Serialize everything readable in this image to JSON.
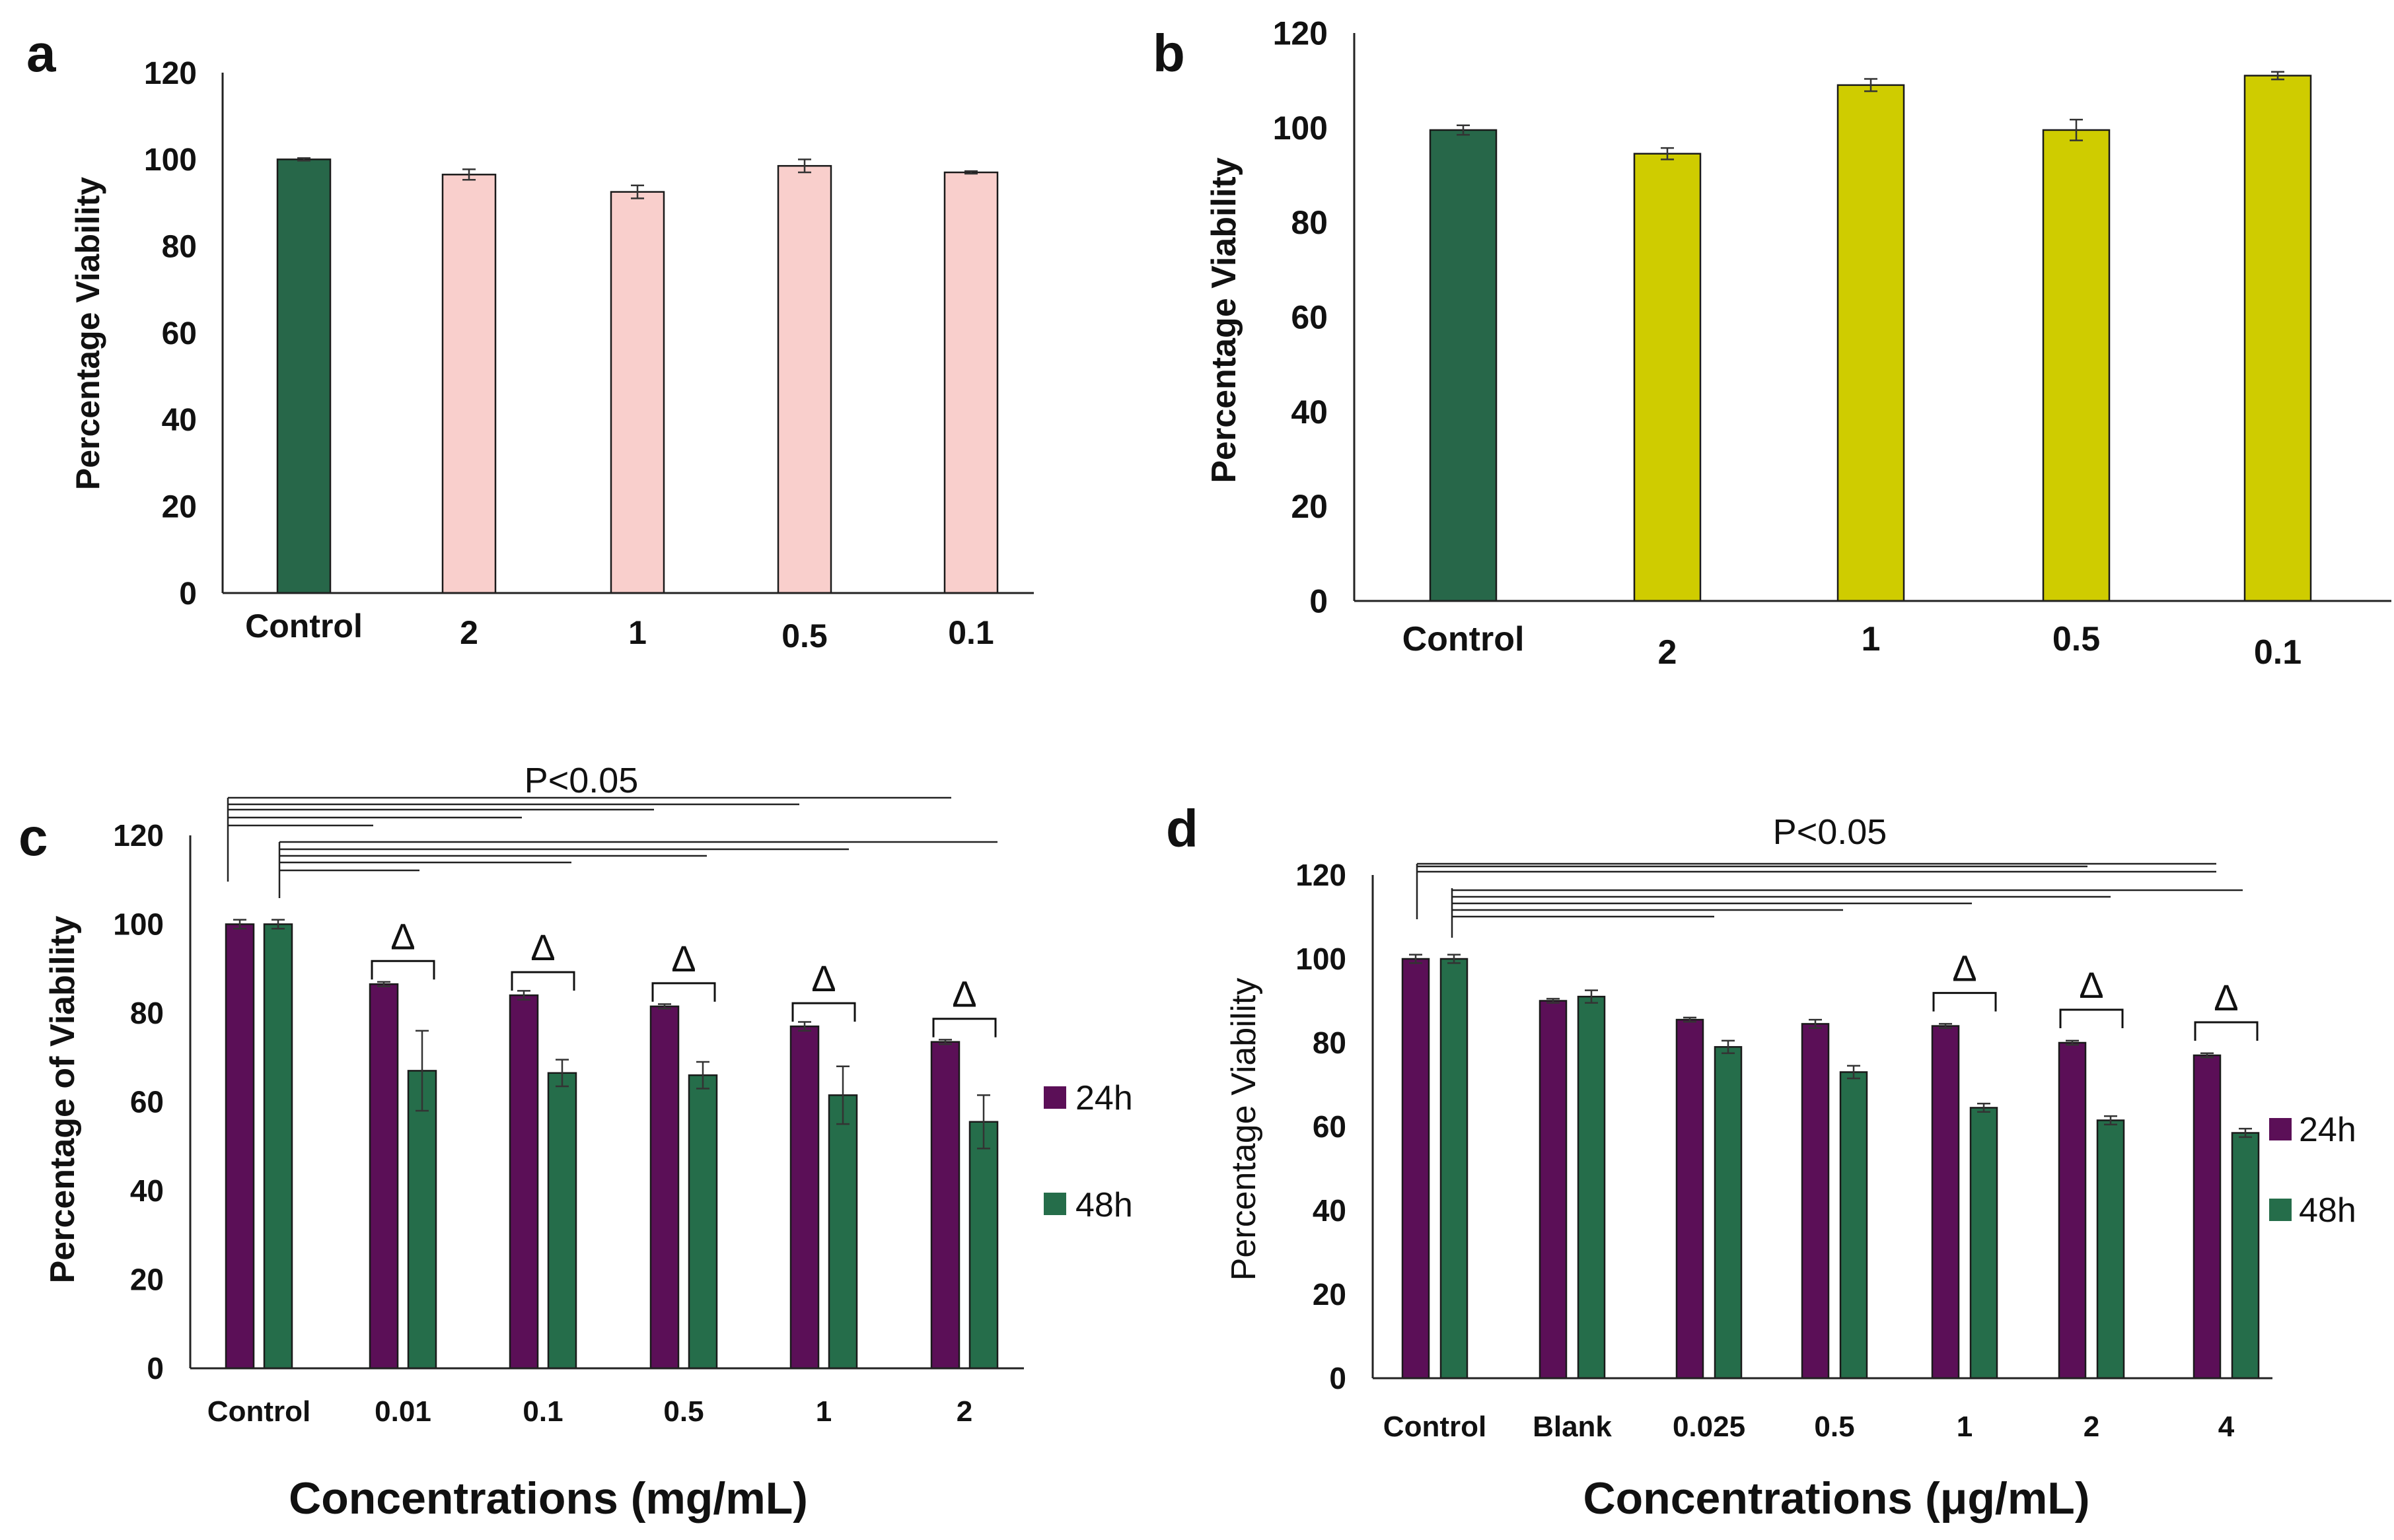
{
  "colors": {
    "control": "#276749",
    "pink": "#f9cfcc",
    "yellow": "#cfcc00",
    "purple": "#5b0f57",
    "green": "#256d4a"
  },
  "chart_data": [
    {
      "type": "bar",
      "panel": "a",
      "ylabel": "Percentage Viability",
      "xlabel": "",
      "ylim": [
        0,
        120
      ],
      "yticks": [
        0,
        20,
        40,
        60,
        80,
        100,
        120
      ],
      "categories": [
        "Control",
        "2",
        "1",
        "0.5",
        "0.1"
      ],
      "values": [
        100,
        96.5,
        92.5,
        98.5,
        97
      ],
      "errors": [
        0.3,
        1.2,
        1.5,
        1.5,
        0.3
      ],
      "bar_colors": [
        "control",
        "pink",
        "pink",
        "pink",
        "pink"
      ]
    },
    {
      "type": "bar",
      "panel": "b",
      "ylabel": "Percentage Viability",
      "xlabel": "",
      "ylim": [
        0,
        120
      ],
      "yticks": [
        0,
        20,
        40,
        60,
        80,
        100,
        120
      ],
      "categories": [
        "Control",
        "2",
        "1",
        "0.5",
        "0.1"
      ],
      "values": [
        99.5,
        94.5,
        109,
        99.5,
        111
      ],
      "errors": [
        1,
        1.2,
        1.3,
        2.2,
        0.8
      ],
      "bar_colors": [
        "control",
        "yellow",
        "yellow",
        "yellow",
        "yellow"
      ]
    },
    {
      "type": "bar",
      "panel": "c",
      "ylabel": "Percentage of Viability",
      "xlabel": "Concentrations (mg/mL)",
      "ylim": [
        0,
        120
      ],
      "yticks": [
        0,
        20,
        40,
        60,
        80,
        100,
        120
      ],
      "categories": [
        "Control",
        "0.01",
        "0.1",
        "0.5",
        "1",
        "2"
      ],
      "series": [
        {
          "name": "24h",
          "color": "purple",
          "values": [
            100,
            86.5,
            84,
            81.5,
            77,
            73.5
          ],
          "errors": [
            1,
            0.5,
            1,
            0.5,
            1,
            0.5
          ]
        },
        {
          "name": "48h",
          "color": "green",
          "values": [
            100,
            67,
            66.5,
            66,
            61.5,
            55.5
          ],
          "errors": [
            1,
            9,
            3,
            3,
            6.5,
            6
          ]
        }
      ],
      "significance_label": "P<0.05",
      "delta_symbol": "Δ",
      "delta_groups": [
        "0.01",
        "0.1",
        "0.5",
        "1",
        "2"
      ]
    },
    {
      "type": "bar",
      "panel": "d",
      "ylabel": "Percentage Viability",
      "xlabel": "Concentrations (μg/mL)",
      "ylim": [
        0,
        120
      ],
      "yticks": [
        0,
        20,
        40,
        60,
        80,
        100,
        120
      ],
      "categories": [
        "Control",
        "Blank",
        "0.025",
        "0.5",
        "1",
        "2",
        "4"
      ],
      "series": [
        {
          "name": "24h",
          "color": "purple",
          "values": [
            100,
            90,
            85.5,
            84.5,
            84,
            80,
            77
          ],
          "errors": [
            1,
            0.5,
            0.5,
            1,
            0.5,
            0.5,
            0.5
          ]
        },
        {
          "name": "48h",
          "color": "green",
          "values": [
            100,
            91,
            79,
            73,
            64.5,
            61.5,
            58.5
          ],
          "errors": [
            1,
            1.5,
            1.5,
            1.5,
            1,
            1,
            1
          ]
        }
      ],
      "significance_label": "P<0.05",
      "delta_symbol": "Δ",
      "delta_groups": [
        "1",
        "2",
        "4"
      ]
    }
  ]
}
